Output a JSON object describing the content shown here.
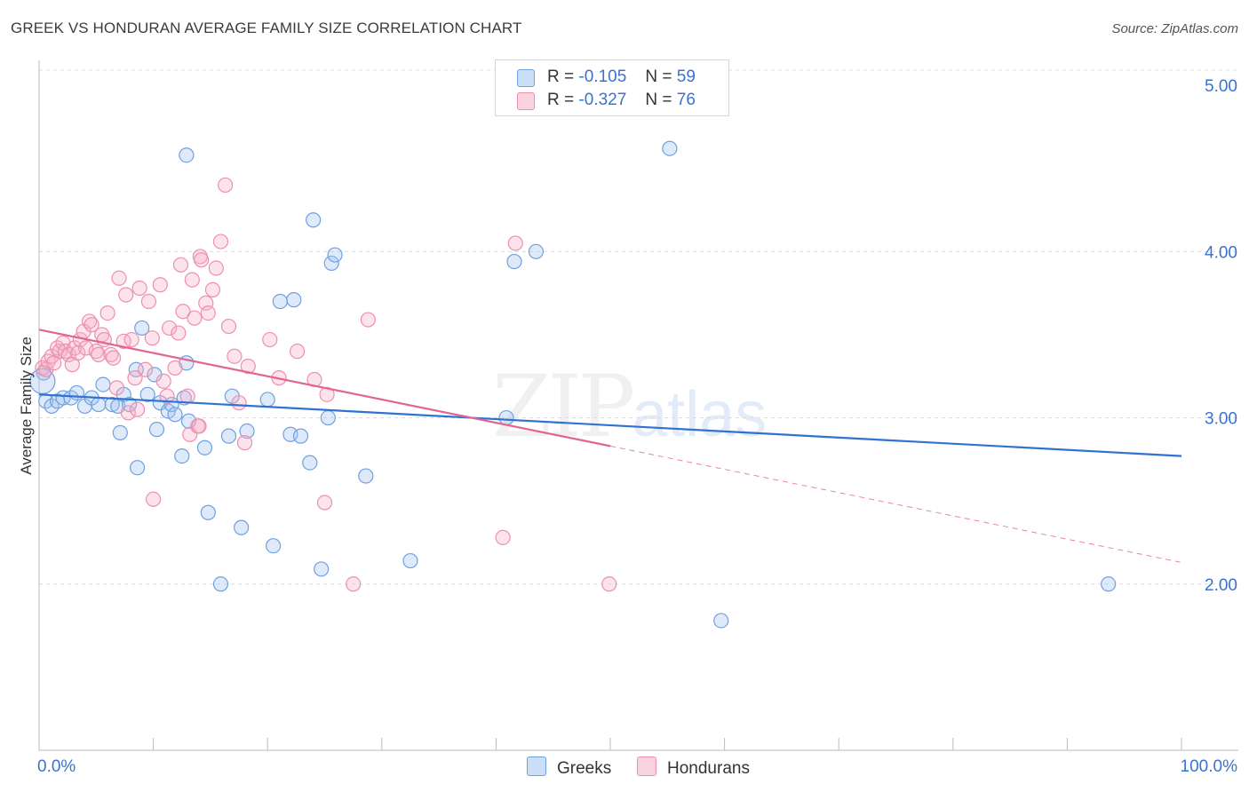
{
  "header": {
    "title": "GREEK VS HONDURAN AVERAGE FAMILY SIZE CORRELATION CHART",
    "source": "Source: ZipAtlas.com"
  },
  "legend": {
    "greeks": {
      "r_label": "R =",
      "r_value": "-0.105",
      "n_label": "N =",
      "n_value": "59"
    },
    "hondurans": {
      "r_label": "R =",
      "r_value": "-0.327",
      "n_label": "N =",
      "n_value": "76"
    }
  },
  "bottom_legend": {
    "greeks": "Greeks",
    "hondurans": "Hondurans"
  },
  "watermark": {
    "zip": "ZIP",
    "atlas": "atlas"
  },
  "colors": {
    "greeks": "#6fa0e0",
    "greeks_fill": "rgba(160,195,240,0.35)",
    "greeks_line": "#2f72d2",
    "hondurans": "#ee8fb0",
    "hondurans_fill": "rgba(245,175,200,0.35)",
    "hondurans_line": "#e0668f",
    "axis_text": "#3b72d0"
  },
  "chart_data": {
    "type": "scatter",
    "title": "GREEK VS HONDURAN AVERAGE FAMILY SIZE CORRELATION CHART",
    "xlabel": "",
    "ylabel": "Average Family Size",
    "xlim": [
      0,
      100
    ],
    "ylim": [
      1.0,
      5.15
    ],
    "x_tick_labels": [
      {
        "value": 0,
        "label": "0.0%"
      },
      {
        "value": 100,
        "label": "100.0%"
      }
    ],
    "y_ticks": [
      {
        "value": 2.0,
        "label": "2.00"
      },
      {
        "value": 3.0,
        "label": "3.00"
      },
      {
        "value": 4.0,
        "label": "4.00"
      },
      {
        "value": 5.0,
        "label": "5.00"
      }
    ],
    "series": [
      {
        "name": "Greeks",
        "r": -0.105,
        "n": 59,
        "trend": {
          "x0": 0,
          "y0": 3.14,
          "x1": 100,
          "y1": 2.77
        },
        "points": [
          [
            0.4,
            3.27
          ],
          [
            0.6,
            3.1
          ],
          [
            1.1,
            3.07
          ],
          [
            1.6,
            3.1
          ],
          [
            2.1,
            3.12
          ],
          [
            2.8,
            3.12
          ],
          [
            3.3,
            3.15
          ],
          [
            4.0,
            3.07
          ],
          [
            4.6,
            3.12
          ],
          [
            5.2,
            3.08
          ],
          [
            5.6,
            3.2
          ],
          [
            6.4,
            3.08
          ],
          [
            6.9,
            3.07
          ],
          [
            7.1,
            2.91
          ],
          [
            7.4,
            3.14
          ],
          [
            7.9,
            3.08
          ],
          [
            8.5,
            3.29
          ],
          [
            8.6,
            2.7
          ],
          [
            9.0,
            3.54
          ],
          [
            9.5,
            3.14
          ],
          [
            10.1,
            3.26
          ],
          [
            10.3,
            2.93
          ],
          [
            10.6,
            3.09
          ],
          [
            11.3,
            3.04
          ],
          [
            11.6,
            3.08
          ],
          [
            11.9,
            3.02
          ],
          [
            12.5,
            2.77
          ],
          [
            12.7,
            3.12
          ],
          [
            12.9,
            4.58
          ],
          [
            12.9,
            3.33
          ],
          [
            13.1,
            2.98
          ],
          [
            14.5,
            2.82
          ],
          [
            14.8,
            2.43
          ],
          [
            15.9,
            2.0
          ],
          [
            16.6,
            2.89
          ],
          [
            16.9,
            3.13
          ],
          [
            17.7,
            2.34
          ],
          [
            18.2,
            2.92
          ],
          [
            20.0,
            3.11
          ],
          [
            20.5,
            2.23
          ],
          [
            21.1,
            3.7
          ],
          [
            22.0,
            2.9
          ],
          [
            22.3,
            3.71
          ],
          [
            22.9,
            2.89
          ],
          [
            23.7,
            2.73
          ],
          [
            24.0,
            4.19
          ],
          [
            24.7,
            2.09
          ],
          [
            25.3,
            3.0
          ],
          [
            25.6,
            3.93
          ],
          [
            25.9,
            3.98
          ],
          [
            28.6,
            2.65
          ],
          [
            32.5,
            2.14
          ],
          [
            40.9,
            3.0
          ],
          [
            41.6,
            3.94
          ],
          [
            43.5,
            4.0
          ],
          [
            55.2,
            4.62
          ],
          [
            59.7,
            1.78
          ],
          [
            93.6,
            2.0
          ],
          [
            0.3,
            3.22
          ]
        ]
      },
      {
        "name": "Hondurans",
        "r": -0.327,
        "n": 76,
        "trend": {
          "x0": 0,
          "y0": 3.53,
          "x1": 50,
          "y1": 2.83
        },
        "trend_extension": {
          "x0": 50,
          "y0": 2.83,
          "x1": 100,
          "y1": 2.13
        },
        "points": [
          [
            0.3,
            3.3
          ],
          [
            0.6,
            3.29
          ],
          [
            0.8,
            3.34
          ],
          [
            1.1,
            3.37
          ],
          [
            1.3,
            3.33
          ],
          [
            1.6,
            3.42
          ],
          [
            1.8,
            3.4
          ],
          [
            2.1,
            3.45
          ],
          [
            2.3,
            3.4
          ],
          [
            2.6,
            3.38
          ],
          [
            2.9,
            3.32
          ],
          [
            3.1,
            3.42
          ],
          [
            3.4,
            3.39
          ],
          [
            3.6,
            3.47
          ],
          [
            3.9,
            3.52
          ],
          [
            4.1,
            3.42
          ],
          [
            4.4,
            3.58
          ],
          [
            4.6,
            3.56
          ],
          [
            5.0,
            3.4
          ],
          [
            5.2,
            3.38
          ],
          [
            5.5,
            3.5
          ],
          [
            5.7,
            3.47
          ],
          [
            6.0,
            3.63
          ],
          [
            6.3,
            3.38
          ],
          [
            6.5,
            3.36
          ],
          [
            6.8,
            3.18
          ],
          [
            7.0,
            3.84
          ],
          [
            7.4,
            3.46
          ],
          [
            7.6,
            3.74
          ],
          [
            7.8,
            3.03
          ],
          [
            8.1,
            3.47
          ],
          [
            8.4,
            3.24
          ],
          [
            8.6,
            3.05
          ],
          [
            8.8,
            3.78
          ],
          [
            9.3,
            3.29
          ],
          [
            9.6,
            3.7
          ],
          [
            9.9,
            3.48
          ],
          [
            10.0,
            2.51
          ],
          [
            10.6,
            3.8
          ],
          [
            10.9,
            3.22
          ],
          [
            11.2,
            3.13
          ],
          [
            11.4,
            3.54
          ],
          [
            11.9,
            3.3
          ],
          [
            12.2,
            3.51
          ],
          [
            12.4,
            3.92
          ],
          [
            12.6,
            3.64
          ],
          [
            13.0,
            3.13
          ],
          [
            13.2,
            2.9
          ],
          [
            13.4,
            3.83
          ],
          [
            13.6,
            3.6
          ],
          [
            13.9,
            2.95
          ],
          [
            14.1,
            3.97
          ],
          [
            14.2,
            3.95
          ],
          [
            14.6,
            3.69
          ],
          [
            14.8,
            3.63
          ],
          [
            15.2,
            3.77
          ],
          [
            15.5,
            3.9
          ],
          [
            15.9,
            4.06
          ],
          [
            16.3,
            4.4
          ],
          [
            16.6,
            3.55
          ],
          [
            17.1,
            3.37
          ],
          [
            17.5,
            3.09
          ],
          [
            18.0,
            2.85
          ],
          [
            18.3,
            3.31
          ],
          [
            20.2,
            3.47
          ],
          [
            21.0,
            3.24
          ],
          [
            22.6,
            3.4
          ],
          [
            24.1,
            3.23
          ],
          [
            25.0,
            2.49
          ],
          [
            25.2,
            3.14
          ],
          [
            27.5,
            2.0
          ],
          [
            28.8,
            3.59
          ],
          [
            40.6,
            2.28
          ],
          [
            41.7,
            4.05
          ],
          [
            49.9,
            2.0
          ],
          [
            14.0,
            2.95
          ]
        ]
      }
    ]
  },
  "axis_labels": {
    "x_min": "0.0%",
    "x_max": "100.0%",
    "y_2": "2.00",
    "y_3": "3.00",
    "y_4": "4.00",
    "y_5": "5.00"
  }
}
